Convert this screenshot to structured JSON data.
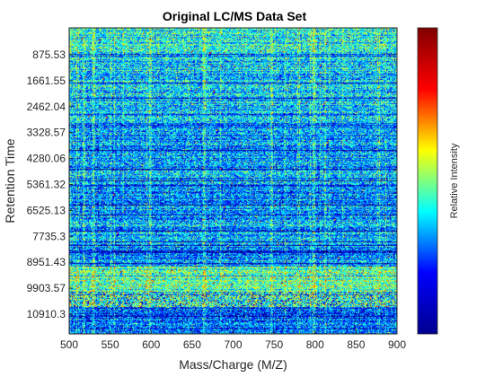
{
  "chart_data": {
    "type": "heatmap",
    "title": "Original LC/MS Data Set",
    "xlabel": "Mass/Charge (M/Z)",
    "ylabel": "Retention Time",
    "colorbar_label": "Relative Intensity",
    "colormap": "jet",
    "colormap_stops": [
      "#00008f",
      "#0000ff",
      "#00ffff",
      "#ffff00",
      "#ff0000",
      "#800000"
    ],
    "xlim": [
      500,
      900
    ],
    "x_ticks": [
      "500",
      "550",
      "600",
      "650",
      "700",
      "750",
      "800",
      "850",
      "900"
    ],
    "y_ticks": [
      "875.53",
      "1661.55",
      "2462.04",
      "3328.57",
      "4280.06",
      "5361.32",
      "6525.13",
      "7735.3",
      "8951.43",
      "9903.57",
      "10910.3"
    ],
    "grid": false,
    "colorbar_position": "right"
  }
}
